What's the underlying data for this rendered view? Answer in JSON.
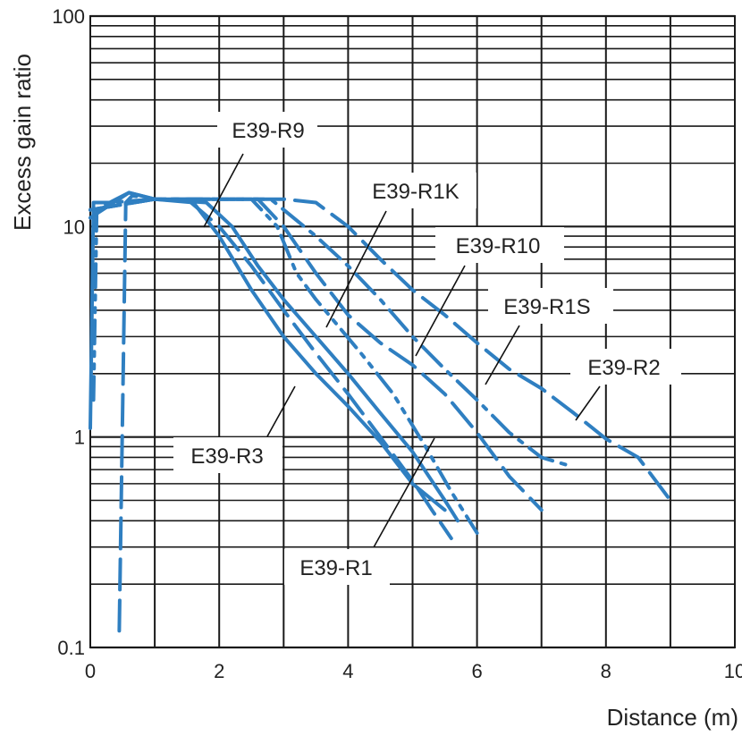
{
  "chart_data": {
    "type": "line",
    "title": "",
    "xlabel": "Distance (m)",
    "ylabel": "Excess gain ratio",
    "xscale": "linear",
    "yscale": "log",
    "xlim": [
      0,
      10
    ],
    "ylim": [
      0.1,
      100
    ],
    "x_ticks": [
      "0",
      "2",
      "4",
      "6",
      "8",
      "10"
    ],
    "y_ticks": [
      "0.1",
      "1",
      "10",
      "100"
    ],
    "grid": true,
    "line_color": "#2f7fc1",
    "series": [
      {
        "name": "E39-R9",
        "style": "dashed",
        "points": [
          [
            0.45,
            0.12
          ],
          [
            0.55,
            13
          ],
          [
            0.65,
            14
          ],
          [
            1.0,
            13.5
          ],
          [
            1.5,
            13.5
          ],
          [
            2.0,
            10
          ],
          [
            2.5,
            6.5
          ],
          [
            3.0,
            4
          ],
          [
            3.5,
            2.5
          ],
          [
            4.0,
            1.6
          ],
          [
            4.5,
            1.0
          ],
          [
            5.0,
            0.62
          ],
          [
            5.3,
            0.45
          ],
          [
            5.6,
            0.33
          ]
        ]
      },
      {
        "name": "E39-R1K",
        "style": "dash-dot-dot",
        "points": [
          [
            0.05,
            1.5
          ],
          [
            0.1,
            12
          ],
          [
            0.3,
            13
          ],
          [
            1.0,
            13.5
          ],
          [
            2.5,
            13.5
          ],
          [
            2.9,
            10
          ],
          [
            3.2,
            6
          ],
          [
            3.5,
            4.5
          ],
          [
            3.8,
            3.5
          ],
          [
            4.2,
            2.5
          ],
          [
            4.7,
            1.6
          ],
          [
            5.2,
            0.9
          ],
          [
            5.6,
            0.55
          ],
          [
            6.0,
            0.35
          ]
        ]
      },
      {
        "name": "E39-R10",
        "style": "dashed",
        "points": [
          [
            0.0,
            12
          ],
          [
            1.0,
            13.5
          ],
          [
            2.6,
            13.5
          ],
          [
            3.0,
            10
          ],
          [
            3.5,
            6
          ],
          [
            4.0,
            3.8
          ],
          [
            4.5,
            2.8
          ],
          [
            5.0,
            2.2
          ],
          [
            5.5,
            1.6
          ],
          [
            6.0,
            1.05
          ],
          [
            6.5,
            0.65
          ],
          [
            7.0,
            0.45
          ]
        ]
      },
      {
        "name": "E39-R1S",
        "style": "dash-dot",
        "points": [
          [
            0.0,
            12
          ],
          [
            1.0,
            13.5
          ],
          [
            2.8,
            13.5
          ],
          [
            3.5,
            9
          ],
          [
            4.0,
            6.5
          ],
          [
            4.5,
            4.5
          ],
          [
            5.0,
            3.0
          ],
          [
            5.5,
            2.1
          ],
          [
            6.0,
            1.5
          ],
          [
            6.5,
            1.05
          ],
          [
            7.0,
            0.8
          ],
          [
            7.5,
            0.72
          ]
        ]
      },
      {
        "name": "E39-R2",
        "style": "dashed",
        "points": [
          [
            0.0,
            12
          ],
          [
            1.0,
            13.5
          ],
          [
            3.0,
            13.5
          ],
          [
            3.5,
            13
          ],
          [
            4.0,
            10
          ],
          [
            4.5,
            7
          ],
          [
            5.0,
            5
          ],
          [
            5.5,
            3.8
          ],
          [
            6.0,
            2.8
          ],
          [
            6.5,
            2.1
          ],
          [
            7.0,
            1.7
          ],
          [
            7.5,
            1.3
          ],
          [
            8.0,
            0.98
          ],
          [
            8.5,
            0.8
          ],
          [
            9.0,
            0.5
          ]
        ]
      },
      {
        "name": "E39-R3",
        "style": "solid",
        "points": [
          [
            0.0,
            11
          ],
          [
            0.6,
            14.5
          ],
          [
            1.0,
            13.5
          ],
          [
            1.6,
            13
          ],
          [
            2.0,
            9
          ],
          [
            2.5,
            5
          ],
          [
            3.0,
            3.0
          ],
          [
            3.5,
            2.0
          ],
          [
            4.0,
            1.4
          ],
          [
            4.5,
            0.95
          ],
          [
            5.0,
            0.6
          ],
          [
            5.5,
            0.45
          ]
        ]
      },
      {
        "name": "E39-R1",
        "style": "solid",
        "points": [
          [
            0.0,
            1.1
          ],
          [
            0.05,
            13
          ],
          [
            0.3,
            13
          ],
          [
            0.6,
            14.5
          ],
          [
            1.0,
            13.5
          ],
          [
            1.8,
            13
          ],
          [
            2.2,
            10
          ],
          [
            2.6,
            6.5
          ],
          [
            3.0,
            4.5
          ],
          [
            3.5,
            3.0
          ],
          [
            4.0,
            2.0
          ],
          [
            4.5,
            1.3
          ],
          [
            5.0,
            0.85
          ],
          [
            5.5,
            0.5
          ],
          [
            5.7,
            0.4
          ]
        ]
      }
    ],
    "annotations": [
      {
        "text": "E39-R9",
        "series": "E39-R9"
      },
      {
        "text": "E39-R1K",
        "series": "E39-R1K"
      },
      {
        "text": "E39-R10",
        "series": "E39-R10"
      },
      {
        "text": "E39-R1S",
        "series": "E39-R1S"
      },
      {
        "text": "E39-R2",
        "series": "E39-R2"
      },
      {
        "text": "E39-R3",
        "series": "E39-R3"
      },
      {
        "text": "E39-R1",
        "series": "E39-R1"
      }
    ]
  }
}
